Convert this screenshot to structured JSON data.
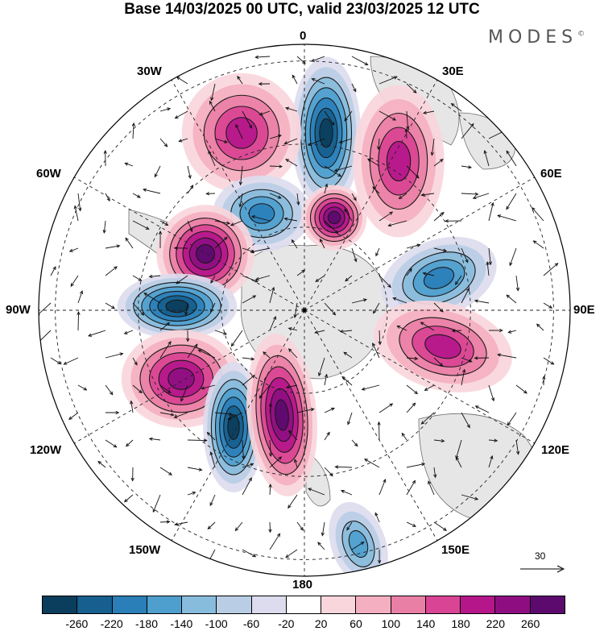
{
  "title": "Base 14/03/2025 00 UTC, valid 23/03/2025 12 UTC",
  "brand": {
    "name": "MODES",
    "mark": "©"
  },
  "longitude_labels": {
    "top": "0",
    "bottom": "180",
    "left": "90W",
    "right": "90E",
    "upper_left_1": "30W",
    "upper_left_2": "60W",
    "upper_right_1": "30E",
    "upper_right_2": "60E",
    "lower_left_1": "120W",
    "lower_left_2": "150W",
    "lower_right_1": "120E",
    "lower_right_2": "150E"
  },
  "map": {
    "projection": "south-polar-stereographic",
    "meridians_deg": [
      0,
      30,
      60,
      90,
      120,
      150,
      180,
      210,
      240,
      270,
      300,
      330
    ],
    "parallel_rings": 3,
    "land_color": "#e6e6e6",
    "coast_color": "#6e6e6e",
    "anomaly_centers": [
      {
        "lon_label": "0",
        "value": -260,
        "sign": "negative"
      },
      {
        "lon_label": "30W",
        "value": 180,
        "sign": "positive"
      },
      {
        "lon_label": "30E",
        "value": 180,
        "sign": "positive"
      },
      {
        "lon_label": "60W",
        "value": -180,
        "sign": "negative"
      },
      {
        "lon_label": "0",
        "value": 260,
        "sign": "positive"
      },
      {
        "lon_label": "60W",
        "value": 260,
        "sign": "positive"
      },
      {
        "lon_label": "90W",
        "value": -260,
        "sign": "negative"
      },
      {
        "lon_label": "60E",
        "value": -180,
        "sign": "negative"
      },
      {
        "lon_label": "90E",
        "value": 180,
        "sign": "positive"
      },
      {
        "lon_label": "120W",
        "value": 220,
        "sign": "positive"
      },
      {
        "lon_label": "150W",
        "value": -260,
        "sign": "negative"
      },
      {
        "lon_label": "180",
        "value": 260,
        "sign": "positive"
      },
      {
        "lon_label": "150E",
        "value": -140,
        "sign": "negative"
      }
    ]
  },
  "vector_reference": {
    "label": "30"
  },
  "colorbar": {
    "colors": [
      "#0b3d5c",
      "#165f8e",
      "#2b7fb8",
      "#4f9fce",
      "#88bcdc",
      "#b9cde5",
      "#dcdcee",
      "#ffffff",
      "#f9d6dc",
      "#f4b0c0",
      "#ea7fa6",
      "#d94494",
      "#b5178a",
      "#8e0e82",
      "#5c0a6e"
    ],
    "ticks": [
      "-260",
      "-220",
      "-180",
      "-140",
      "-100",
      "-60",
      "-20",
      "20",
      "60",
      "100",
      "140",
      "180",
      "220",
      "260"
    ]
  }
}
